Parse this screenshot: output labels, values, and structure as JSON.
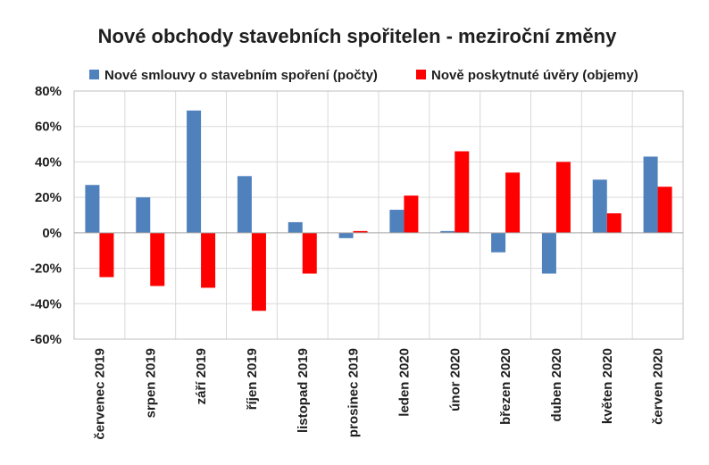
{
  "chart_data": {
    "type": "bar",
    "title": "Nové obchody stavebních spořitelen - meziroční změny",
    "xlabel": "",
    "ylabel": "",
    "ylim": [
      -60,
      80
    ],
    "yticks": [
      80,
      60,
      40,
      20,
      0,
      -20,
      -40,
      -60
    ],
    "ytick_labels": [
      "80%",
      "60%",
      "40%",
      "20%",
      "0%",
      "-20%",
      "-40%",
      "-60%"
    ],
    "grid": true,
    "legend_position": "top",
    "categories": [
      "červenec 2019",
      "srpen 2019",
      "září 2019",
      "říjen 2019",
      "listopad 2019",
      "prosinec 2019",
      "leden 2020",
      "únor 2020",
      "březen 2020",
      "duben 2020",
      "květen 2020",
      "červen 2020"
    ],
    "series": [
      {
        "name": "Nové smlouvy o stavebním spoření (počty)",
        "color": "#4f81bd",
        "values": [
          27,
          20,
          69,
          32,
          6,
          -3,
          13,
          1,
          -11,
          -23,
          30,
          43
        ]
      },
      {
        "name": "Nově poskytnuté úvěry (objemy)",
        "color": "#ff0000",
        "values": [
          -25,
          -30,
          -31,
          -44,
          -23,
          1,
          21,
          46,
          34,
          40,
          11,
          26
        ]
      }
    ]
  }
}
